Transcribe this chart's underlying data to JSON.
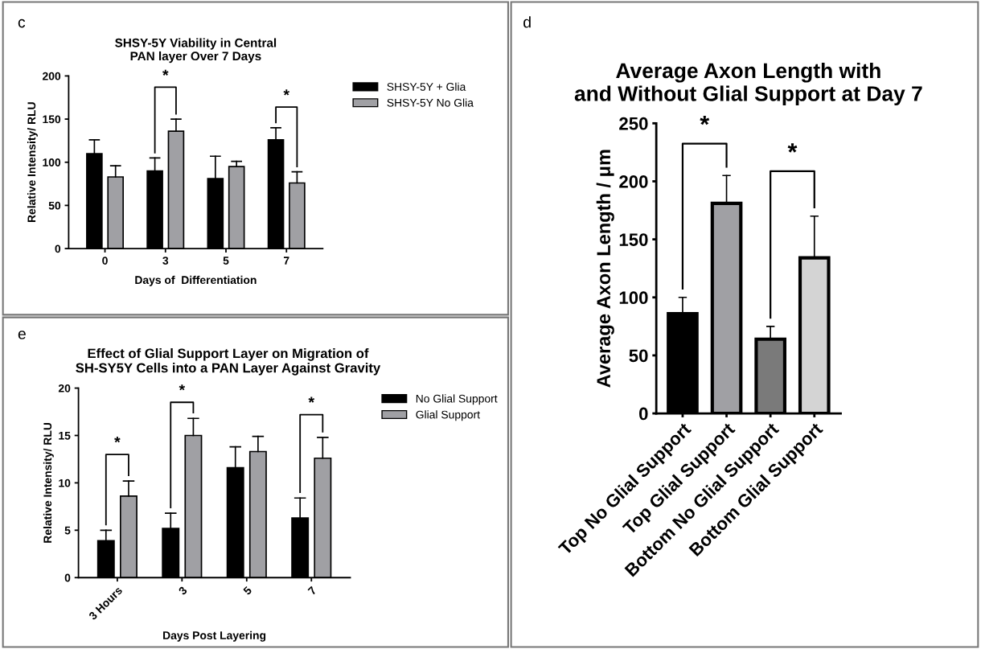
{
  "chart_data": [
    {
      "type": "bar",
      "title": "SHSY-5Y Viability in Central\nPAN layer Over 7 Days",
      "xlabel": "Days of  Differentiation",
      "ylabel": "Relative Intensity/ RLU",
      "categories": [
        "0",
        "3",
        "5",
        "7"
      ],
      "series": [
        {
          "name": "SHSY-5Y + Glia",
          "color": "#000000",
          "values": [
            110,
            90,
            81,
            126
          ],
          "errors": [
            [
              110,
              126
            ],
            [
              90,
              105
            ],
            [
              81,
              107
            ],
            [
              126,
              140
            ]
          ]
        },
        {
          "name": "SHSY-5Y No Glia",
          "color": "#a0a0a4",
          "values": [
            83,
            136,
            95,
            76
          ],
          "errors": [
            [
              83,
              96
            ],
            [
              136,
              150
            ],
            [
              95,
              101
            ],
            [
              76,
              89
            ]
          ]
        }
      ],
      "ylim": [
        0,
        200
      ],
      "yticks": [
        0,
        50,
        100,
        150,
        200
      ],
      "grid": false,
      "legend": "right",
      "annotations": [
        "c",
        "*",
        "*"
      ]
    },
    {
      "type": "bar",
      "title": "Average Axon Length with\nand Without Glial Support at Day 7",
      "ylabel": "Average Axon Length / μm",
      "categories": [
        "Top No Glial Support",
        "Top Glial Support",
        "Bottom No Glial Support",
        "Bottom Glial Support"
      ],
      "values": [
        86,
        181,
        64,
        134
      ],
      "colors": [
        "#000000",
        "#a0a0a4",
        "#7a7a7a",
        "#d4d4d4"
      ],
      "errors": [
        [
          86,
          100
        ],
        [
          181,
          205
        ],
        [
          64,
          75
        ],
        [
          134,
          170
        ]
      ],
      "ylim": [
        0,
        250
      ],
      "yticks": [
        0,
        50,
        100,
        150,
        200,
        250
      ],
      "grid": false,
      "annotations": [
        "d",
        "*",
        "*"
      ]
    },
    {
      "type": "bar",
      "title": "Effect of Glial Support Layer on Migration of\nSH-SY5Y Cells into a PAN Layer Against Gravity",
      "xlabel": "Days Post Layering",
      "ylabel": "Relative Intensity/ RLU",
      "categories": [
        "3 Hours",
        "3",
        "5",
        "7"
      ],
      "series": [
        {
          "name": "No Glial Support",
          "color": "#000000",
          "values": [
            3.9,
            5.2,
            11.6,
            6.3
          ],
          "errors": [
            [
              3.9,
              5.0
            ],
            [
              5.2,
              6.8
            ],
            [
              11.6,
              13.8
            ],
            [
              6.3,
              8.4
            ]
          ]
        },
        {
          "name": "Glial Support",
          "color": "#a0a0a4",
          "values": [
            8.6,
            15.0,
            13.3,
            12.6
          ],
          "errors": [
            [
              8.6,
              10.2
            ],
            [
              15.0,
              16.8
            ],
            [
              13.3,
              14.9
            ],
            [
              12.6,
              14.8
            ]
          ]
        }
      ],
      "ylim": [
        0,
        20
      ],
      "yticks": [
        0,
        5,
        10,
        15,
        20
      ],
      "grid": false,
      "legend": "right",
      "annotations": [
        "e",
        "*",
        "*",
        "*"
      ]
    }
  ]
}
